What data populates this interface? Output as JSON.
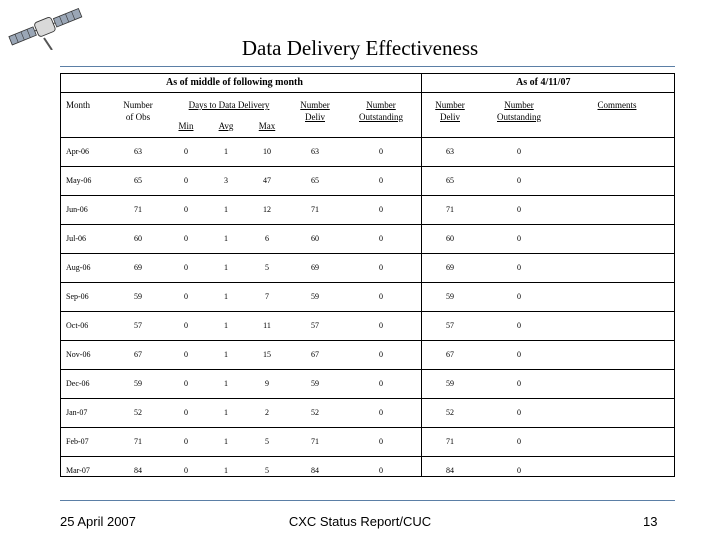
{
  "title": "Data Delivery Effectiveness",
  "groups": {
    "left": "As of middle of following month",
    "right": "As of 4/11/07"
  },
  "headers": {
    "month": "Month",
    "num_obs_1": "Number",
    "num_obs_2": "of Obs",
    "days": "Days to Data Delivery",
    "min": "Min",
    "avg": "Avg",
    "max": "Max",
    "num_deliv_1": "Number",
    "num_deliv_2": "Deliv",
    "num_out_1": "Number",
    "num_out_2": "Outstanding",
    "num_deliv2_1": "Number",
    "num_deliv2_2": "Deliv",
    "num_out2_1": "Number",
    "num_out2_2": "Outstanding",
    "comments": "Comments"
  },
  "rows": [
    {
      "month": "Apr-06",
      "obs": "63",
      "min": "0",
      "avg": "1",
      "max": "10",
      "deliv": "63",
      "out": "0",
      "deliv2": "63",
      "out2": "0"
    },
    {
      "month": "May-06",
      "obs": "65",
      "min": "0",
      "avg": "3",
      "max": "47",
      "deliv": "65",
      "out": "0",
      "deliv2": "65",
      "out2": "0"
    },
    {
      "month": "Jun-06",
      "obs": "71",
      "min": "0",
      "avg": "1",
      "max": "12",
      "deliv": "71",
      "out": "0",
      "deliv2": "71",
      "out2": "0"
    },
    {
      "month": "Jul-06",
      "obs": "60",
      "min": "0",
      "avg": "1",
      "max": "6",
      "deliv": "60",
      "out": "0",
      "deliv2": "60",
      "out2": "0"
    },
    {
      "month": "Aug-06",
      "obs": "69",
      "min": "0",
      "avg": "1",
      "max": "5",
      "deliv": "69",
      "out": "0",
      "deliv2": "69",
      "out2": "0"
    },
    {
      "month": "Sep-06",
      "obs": "59",
      "min": "0",
      "avg": "1",
      "max": "7",
      "deliv": "59",
      "out": "0",
      "deliv2": "59",
      "out2": "0"
    },
    {
      "month": "Oct-06",
      "obs": "57",
      "min": "0",
      "avg": "1",
      "max": "11",
      "deliv": "57",
      "out": "0",
      "deliv2": "57",
      "out2": "0"
    },
    {
      "month": "Nov-06",
      "obs": "67",
      "min": "0",
      "avg": "1",
      "max": "15",
      "deliv": "67",
      "out": "0",
      "deliv2": "67",
      "out2": "0"
    },
    {
      "month": "Dec-06",
      "obs": "59",
      "min": "0",
      "avg": "1",
      "max": "9",
      "deliv": "59",
      "out": "0",
      "deliv2": "59",
      "out2": "0"
    },
    {
      "month": "Jan-07",
      "obs": "52",
      "min": "0",
      "avg": "1",
      "max": "2",
      "deliv": "52",
      "out": "0",
      "deliv2": "52",
      "out2": "0"
    },
    {
      "month": "Feb-07",
      "obs": "71",
      "min": "0",
      "avg": "1",
      "max": "5",
      "deliv": "71",
      "out": "0",
      "deliv2": "71",
      "out2": "0"
    },
    {
      "month": "Mar-07",
      "obs": "84",
      "min": "0",
      "avg": "1",
      "max": "5",
      "deliv": "84",
      "out": "0",
      "deliv2": "84",
      "out2": "0"
    }
  ],
  "footer": {
    "date": "25 April 2007",
    "center": "CXC Status Report/CUC",
    "page": "13"
  },
  "colors": {
    "rule": "#5b7fa6"
  }
}
